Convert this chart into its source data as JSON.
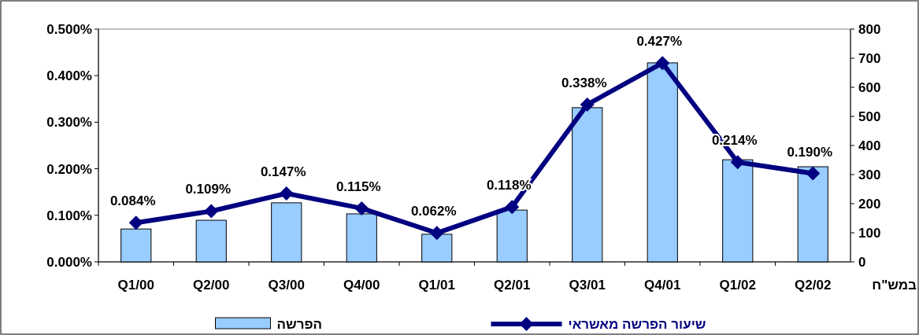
{
  "chart_data": {
    "type": "bar",
    "categories": [
      "Q1/00",
      "Q2/00",
      "Q3/00",
      "Q4/00",
      "Q1/01",
      "Q2/01",
      "Q3/01",
      "Q4/01",
      "Q1/02",
      "Q2/02"
    ],
    "series": [
      {
        "name": "הפרשה",
        "axis": "y2",
        "color": "#99ccff",
        "values": [
          113,
          143,
          203,
          165,
          95,
          178,
          530,
          684,
          351,
          327
        ]
      },
      {
        "name": "שיעור הפרשה מאשראי",
        "type": "line",
        "axis": "y",
        "color": "#000080",
        "marker": "diamond",
        "values": [
          0.084,
          0.109,
          0.147,
          0.115,
          0.062,
          0.118,
          0.338,
          0.427,
          0.214,
          0.19
        ],
        "value_labels": [
          "0.084%",
          "0.109%",
          "0.147%",
          "0.115%",
          "0.062%",
          "0.118%",
          "0.338%",
          "0.427%",
          "0.214%",
          "0.190%"
        ]
      }
    ],
    "ylim": [
      0,
      0.5
    ],
    "yticks": [
      {
        "value": 0,
        "label": "0.000%"
      },
      {
        "value": 0.1,
        "label": "0.100%"
      },
      {
        "value": 0.2,
        "label": "0.200%"
      },
      {
        "value": 0.3,
        "label": "0.300%"
      },
      {
        "value": 0.4,
        "label": "0.400%"
      },
      {
        "value": 0.5,
        "label": "0.500%"
      }
    ],
    "y2lim": [
      0,
      800
    ],
    "y2ticks": [
      0,
      100,
      200,
      300,
      400,
      500,
      600,
      700,
      800
    ],
    "y2label": "במש\"ח",
    "legend": "bottom"
  }
}
